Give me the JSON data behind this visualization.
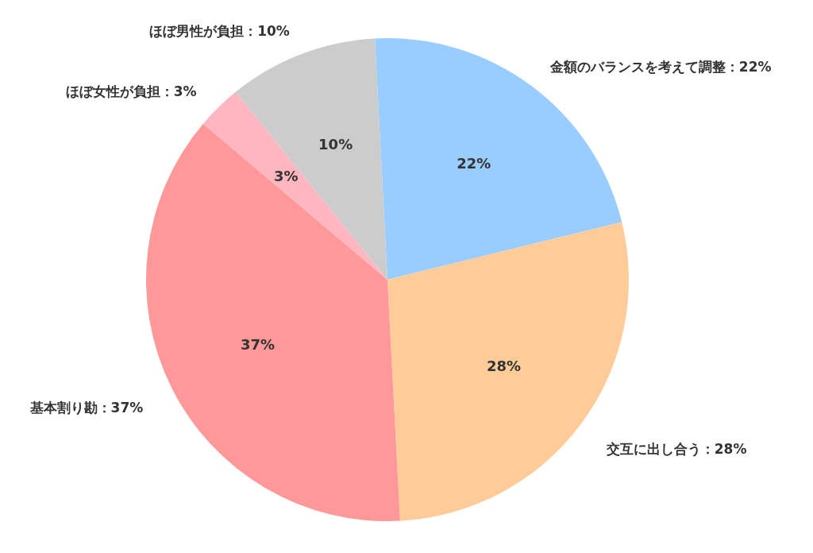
{
  "chart_data": {
    "type": "pie",
    "categories": [
      "金額のバランスを考えて調整",
      "交互に出し合う",
      "基本割り勘",
      "ほぼ女性が負担",
      "ほぼ男性が負担"
    ],
    "values": [
      22,
      28,
      37,
      3,
      10
    ],
    "value_labels": [
      "22%",
      "28%",
      "37%",
      "3%",
      "10%"
    ],
    "colors": [
      "#99ccff",
      "#ffcc99",
      "#ff9999",
      "#ffb6c1",
      "#cccccc"
    ]
  }
}
